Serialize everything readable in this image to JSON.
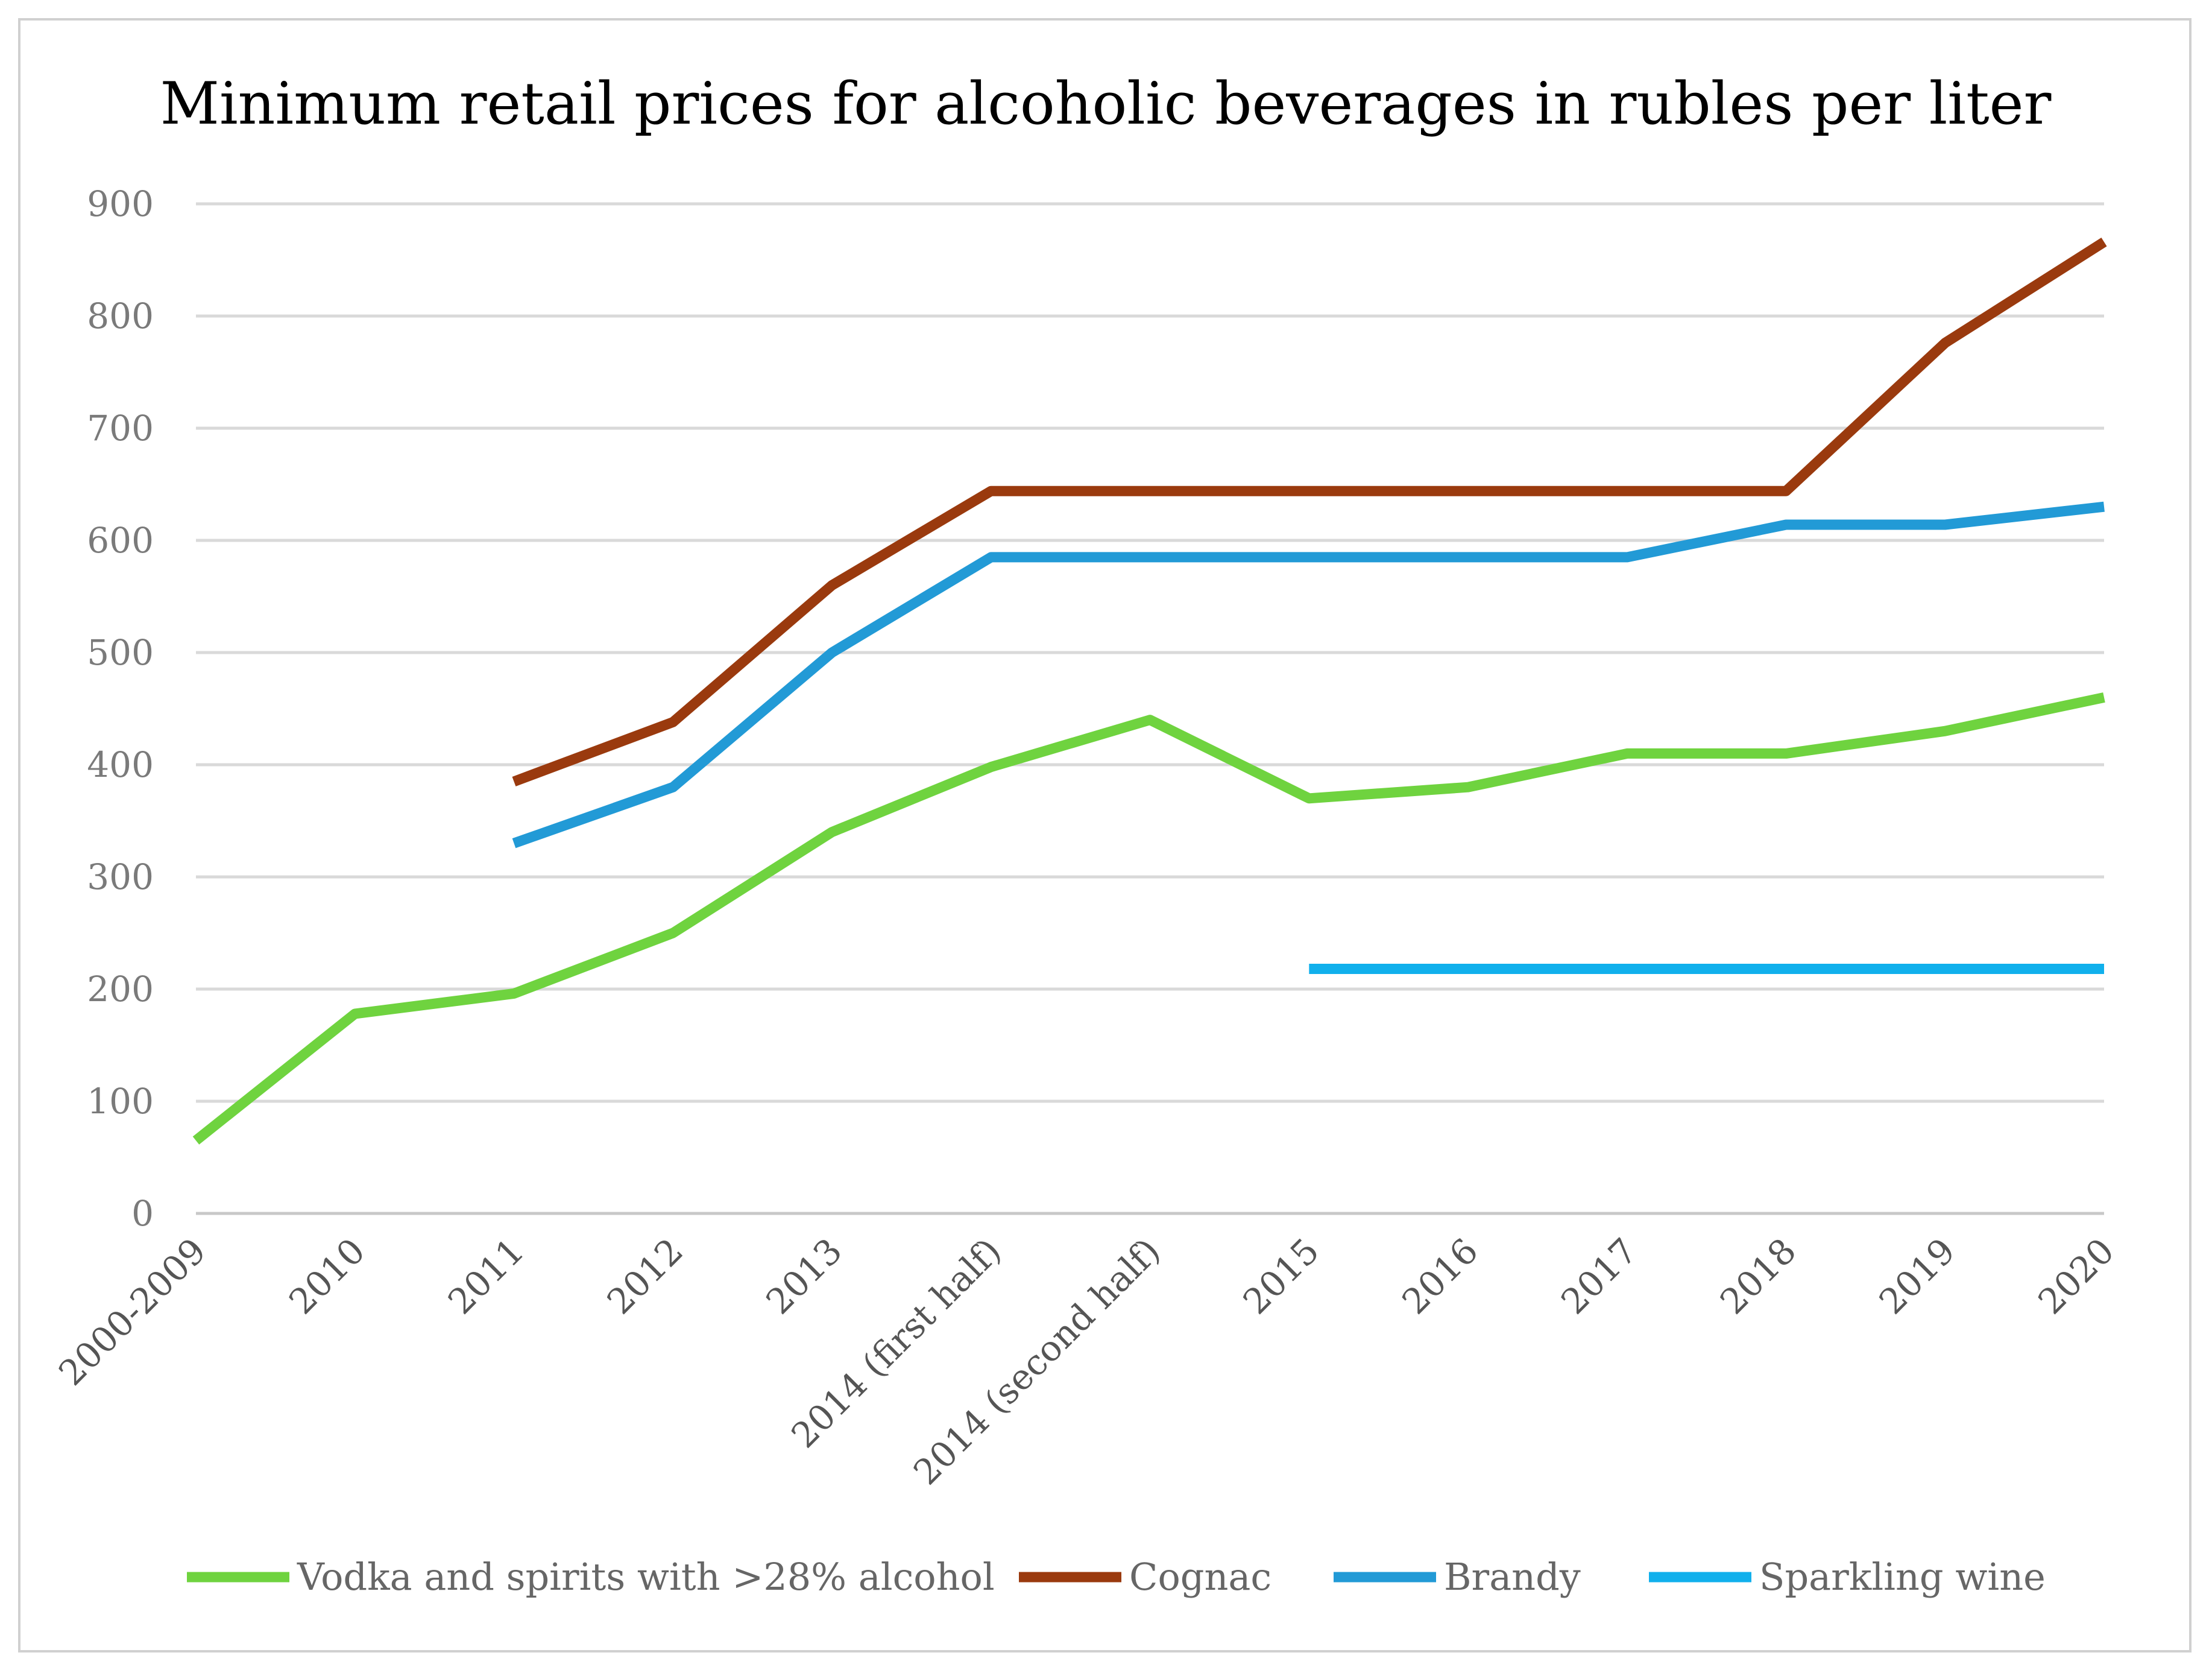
{
  "chart_data": {
    "type": "line",
    "title": "Minimum retail prices for alcoholic beverages in rubles per liter",
    "xlabel": "",
    "ylabel": "",
    "ylim": [
      0,
      900
    ],
    "yticks": [
      0,
      100,
      200,
      300,
      400,
      500,
      600,
      700,
      800,
      900
    ],
    "grid": true,
    "legend_position": "bottom",
    "categories": [
      "2000-2009",
      "2010",
      "2011",
      "2012",
      "2013",
      "2014 (first half)",
      "2014 (second half)",
      "2015",
      "2016",
      "2017",
      "2018",
      "2019",
      "2020"
    ],
    "series": [
      {
        "name": "Vodka and spirits with >28% alcohol",
        "color": "#6fd33f",
        "values": [
          65,
          178,
          196,
          250,
          340,
          398,
          440,
          370,
          380,
          410,
          410,
          430,
          460
        ]
      },
      {
        "name": "Cognac",
        "color": "#9a3a0e",
        "values": [
          null,
          null,
          385,
          438,
          560,
          644,
          644,
          644,
          644,
          644,
          644,
          776,
          866
        ]
      },
      {
        "name": "Brandy",
        "color": "#229ad6",
        "values": [
          null,
          null,
          330,
          380,
          500,
          585,
          585,
          585,
          585,
          585,
          614,
          614,
          630
        ]
      },
      {
        "name": "Sparkling wine",
        "color": "#11b0ec",
        "values": [
          null,
          null,
          null,
          null,
          null,
          null,
          null,
          218,
          218,
          218,
          218,
          218,
          218
        ]
      }
    ]
  }
}
